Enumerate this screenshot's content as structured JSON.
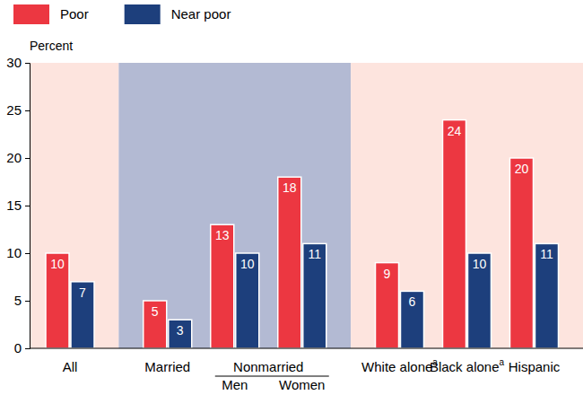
{
  "chart_data": {
    "type": "bar",
    "y_label": "Percent",
    "categories": [
      "All",
      "Married",
      "Men",
      "Women",
      "White alone",
      "Black alone",
      "Hispanic"
    ],
    "category_notes": [
      null,
      null,
      null,
      null,
      "a",
      "a",
      null
    ],
    "category_groups": [
      {
        "label": "Nonmarried",
        "categories": [
          "Men",
          "Women"
        ]
      }
    ],
    "series": [
      {
        "name": "Poor",
        "color": "#ec3741",
        "values": [
          10,
          5,
          13,
          18,
          9,
          24,
          20
        ]
      },
      {
        "name": "Near poor",
        "color": "#1d3f7c",
        "values": [
          7,
          3,
          10,
          11,
          6,
          10,
          11
        ]
      }
    ],
    "ylim": [
      0,
      30
    ],
    "yticks": [
      0,
      5,
      10,
      15,
      20,
      25,
      30
    ],
    "data_labels": true,
    "legend": "top-left",
    "grid": false
  }
}
